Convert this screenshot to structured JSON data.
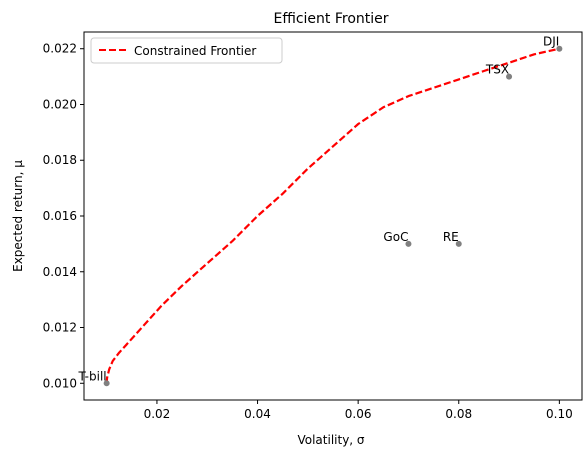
{
  "chart_data": {
    "type": "line",
    "title": "Efficient Frontier",
    "xlabel": "Volatility, σ",
    "ylabel": "Expected return, μ",
    "xlim": [
      0.0055,
      0.1045
    ],
    "ylim": [
      0.0094,
      0.0226
    ],
    "x_ticks": [
      "0.02",
      "0.04",
      "0.06",
      "0.08",
      "0.10"
    ],
    "x_tick_values": [
      0.02,
      0.04,
      0.06,
      0.08,
      0.1
    ],
    "y_ticks": [
      "0.010",
      "0.012",
      "0.014",
      "0.016",
      "0.018",
      "0.020",
      "0.022"
    ],
    "y_tick_values": [
      0.01,
      0.012,
      0.014,
      0.016,
      0.018,
      0.02,
      0.022
    ],
    "grid": false,
    "legend_position": "upper-left",
    "series": [
      {
        "name": "Constrained Frontier",
        "style": "dashed",
        "color": "#ff0000",
        "x": [
          0.01,
          0.0101,
          0.0105,
          0.0112,
          0.0125,
          0.0145,
          0.0175,
          0.021,
          0.025,
          0.03,
          0.035,
          0.04,
          0.045,
          0.05,
          0.055,
          0.06,
          0.065,
          0.07,
          0.075,
          0.08,
          0.085,
          0.09,
          0.095,
          0.1
        ],
        "y": [
          0.01,
          0.0102,
          0.0105,
          0.0108,
          0.0111,
          0.0115,
          0.0121,
          0.0128,
          0.0135,
          0.0143,
          0.0151,
          0.016,
          0.0168,
          0.0177,
          0.0185,
          0.0193,
          0.0199,
          0.0203,
          0.0206,
          0.0209,
          0.0212,
          0.0215,
          0.0218,
          0.022
        ]
      }
    ],
    "points": [
      {
        "label": "T-bill",
        "x": 0.01,
        "y": 0.01
      },
      {
        "label": "GoC",
        "x": 0.07,
        "y": 0.015
      },
      {
        "label": "RE",
        "x": 0.08,
        "y": 0.015
      },
      {
        "label": "TSX",
        "x": 0.09,
        "y": 0.021
      },
      {
        "label": "DJI",
        "x": 0.1,
        "y": 0.022
      }
    ],
    "colors": {
      "frontier": "#ff0000",
      "points": "#808080",
      "axes": "#000000"
    }
  }
}
